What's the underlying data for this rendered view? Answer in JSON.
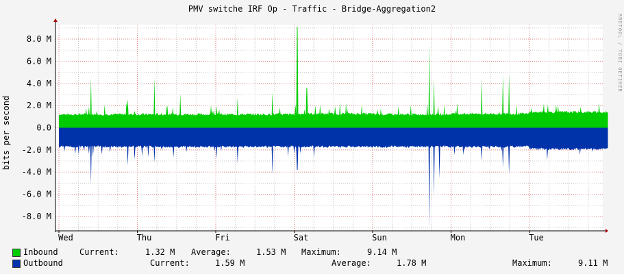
{
  "title": "PMV switche IRF Op - Traffic - Bridge-Aggregation2",
  "watermark": "RRDTOOL / TOBI OETIKER",
  "colors": {
    "inbound": "#00cc00",
    "outbound": "#0033aa",
    "grid_major": "#e08080",
    "grid_minor": "#c8c8c8",
    "background": "#f4f4f4",
    "canvas": "#ffffff"
  },
  "legend": {
    "inbound": {
      "label": "Inbound",
      "current_label": "Current:",
      "current": "1.32 M",
      "average_label": "Average:",
      "average": "1.53 M",
      "maximum_label": "Maximum:",
      "maximum": "9.14 M"
    },
    "outbound": {
      "label": "Outbound",
      "current_label": "Current:",
      "current": "1.59 M",
      "average_label": "Average:",
      "average": "1.78 M",
      "maximum_label": "Maximum:",
      "maximum": "9.11 M"
    }
  },
  "chart_data": {
    "type": "area",
    "ylabel": "bits per second",
    "ylim": [
      -9.3,
      9.3
    ],
    "yticks": [
      8,
      6,
      4,
      2,
      0,
      -2,
      -4,
      -6,
      -8
    ],
    "ytick_labels": [
      "8.0 M",
      "6.0 M",
      "4.0 M",
      "2.0 M",
      "0.0",
      "-2.0 M",
      "-4.0 M",
      "-6.0 M",
      "-8.0 M"
    ],
    "x_unit": "days",
    "xlim": [
      0,
      7
    ],
    "xticks": [
      0,
      1,
      2,
      3,
      4,
      5,
      6
    ],
    "xtick_labels": [
      "Wed",
      "Thu",
      "Fri",
      "Sat",
      "Sun",
      "Mon",
      "Tue"
    ],
    "grid": true,
    "series": [
      {
        "name": "Inbound",
        "color": "#00cc00",
        "baseline_by_day": [
          1.1,
          1.1,
          1.1,
          1.15,
          1.1,
          1.15,
          1.3
        ],
        "spikes": [
          [
            0.41,
            4.5
          ],
          [
            0.88,
            2.6
          ],
          [
            1.22,
            4.5
          ],
          [
            1.55,
            3.1
          ],
          [
            2.28,
            2.7
          ],
          [
            2.72,
            3.2
          ],
          [
            3.04,
            9.1
          ],
          [
            3.16,
            3.6
          ],
          [
            4.72,
            7.5
          ],
          [
            4.78,
            4.5
          ],
          [
            5.39,
            4.5
          ],
          [
            5.66,
            4.8
          ],
          [
            5.74,
            4.8
          ]
        ]
      },
      {
        "name": "Outbound",
        "color": "#0033aa",
        "baseline_by_day": [
          -1.6,
          -1.6,
          -1.6,
          -1.6,
          -1.6,
          -1.6,
          -1.8
        ],
        "spikes": [
          [
            0.41,
            -5.1
          ],
          [
            0.88,
            -3.4
          ],
          [
            1.22,
            -3.1
          ],
          [
            2.28,
            -3.2
          ],
          [
            2.72,
            -4.2
          ],
          [
            3.04,
            -3.8
          ],
          [
            4.72,
            -9.1
          ],
          [
            4.78,
            -6.2
          ],
          [
            4.85,
            -4.6
          ],
          [
            5.39,
            -3.0
          ],
          [
            5.66,
            -3.6
          ],
          [
            5.74,
            -4.2
          ]
        ]
      }
    ]
  }
}
